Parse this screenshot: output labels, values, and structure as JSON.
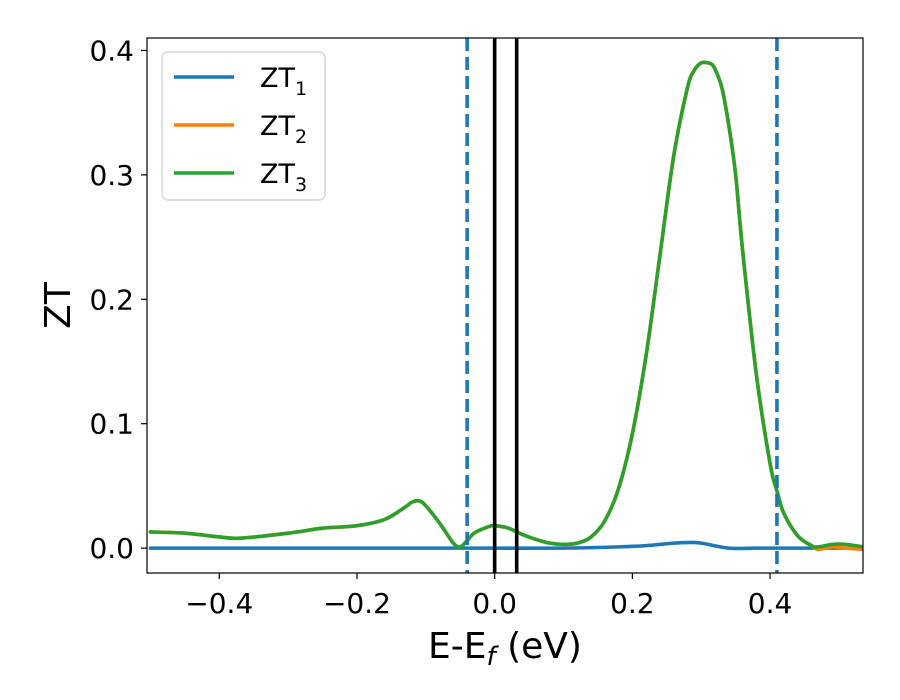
{
  "chart_data": {
    "type": "line",
    "xlabel": "E-E",
    "xlabel_sub": "f",
    "xlabel_unit": " (eV)",
    "ylabel": "ZT",
    "xlim": [
      -0.505,
      0.535
    ],
    "ylim": [
      -0.02,
      0.41
    ],
    "xticks": [
      -0.4,
      -0.2,
      0.0,
      0.2,
      0.4
    ],
    "xtick_labels": [
      "−0.4",
      "−0.2",
      "0.0",
      "0.2",
      "0.4"
    ],
    "yticks": [
      0.0,
      0.1,
      0.2,
      0.3,
      0.4
    ],
    "ytick_labels": [
      "0.0",
      "0.1",
      "0.2",
      "0.3",
      "0.4"
    ],
    "grid": false,
    "legend_position": "upper-left",
    "series": [
      {
        "name": "ZT",
        "sub": "1",
        "color": "#1f77b4",
        "x": [
          -0.5,
          -0.4,
          -0.3,
          -0.2,
          -0.1,
          0.0,
          0.1,
          0.18,
          0.22,
          0.26,
          0.28,
          0.3,
          0.34,
          0.38,
          0.42,
          0.46,
          0.5,
          0.535
        ],
        "y": [
          0.0,
          0.0,
          0.0,
          0.0,
          0.0,
          0.0,
          0.0,
          0.001,
          0.002,
          0.004,
          0.0045,
          0.004,
          0.0,
          0.0,
          0.0,
          0.0,
          0.0,
          0.0
        ]
      },
      {
        "name": "ZT",
        "sub": "2",
        "color": "#ff7f0e",
        "x": [
          -0.5,
          -0.45,
          -0.4,
          -0.37,
          -0.3,
          -0.25,
          -0.2,
          -0.16,
          -0.13,
          -0.12,
          -0.11,
          -0.1,
          -0.08,
          -0.06,
          -0.05,
          -0.04,
          -0.03,
          -0.01,
          0.0,
          0.02,
          0.04,
          0.06,
          0.08,
          0.1,
          0.12,
          0.14,
          0.16,
          0.18,
          0.2,
          0.22,
          0.24,
          0.26,
          0.28,
          0.29,
          0.3,
          0.31,
          0.315,
          0.32,
          0.33,
          0.34,
          0.35,
          0.36,
          0.38,
          0.4,
          0.41,
          0.42,
          0.44,
          0.46,
          0.47,
          0.49,
          0.51,
          0.535
        ],
        "y": [
          0.013,
          0.012,
          0.009,
          0.008,
          0.012,
          0.016,
          0.018,
          0.023,
          0.033,
          0.037,
          0.038,
          0.034,
          0.02,
          0.004,
          0.001,
          0.006,
          0.012,
          0.017,
          0.018,
          0.016,
          0.011,
          0.007,
          0.004,
          0.003,
          0.004,
          0.009,
          0.022,
          0.048,
          0.092,
          0.155,
          0.235,
          0.315,
          0.37,
          0.384,
          0.39,
          0.39,
          0.389,
          0.385,
          0.37,
          0.34,
          0.3,
          0.24,
          0.14,
          0.068,
          0.046,
          0.028,
          0.01,
          0.002,
          -0.001,
          0.001,
          0.0,
          -0.001
        ]
      },
      {
        "name": "ZT",
        "sub": "3",
        "color": "#2ca02c",
        "x": [
          -0.5,
          -0.45,
          -0.4,
          -0.37,
          -0.3,
          -0.25,
          -0.2,
          -0.16,
          -0.13,
          -0.12,
          -0.11,
          -0.1,
          -0.08,
          -0.06,
          -0.05,
          -0.04,
          -0.03,
          -0.01,
          0.0,
          0.02,
          0.04,
          0.06,
          0.08,
          0.1,
          0.12,
          0.14,
          0.16,
          0.18,
          0.2,
          0.22,
          0.24,
          0.26,
          0.28,
          0.29,
          0.3,
          0.31,
          0.315,
          0.32,
          0.33,
          0.34,
          0.35,
          0.36,
          0.38,
          0.4,
          0.41,
          0.42,
          0.44,
          0.46,
          0.47,
          0.49,
          0.51,
          0.535
        ],
        "y": [
          0.013,
          0.012,
          0.009,
          0.008,
          0.012,
          0.016,
          0.018,
          0.023,
          0.033,
          0.037,
          0.038,
          0.034,
          0.02,
          0.004,
          0.001,
          0.006,
          0.012,
          0.017,
          0.018,
          0.016,
          0.011,
          0.007,
          0.004,
          0.003,
          0.004,
          0.009,
          0.022,
          0.048,
          0.092,
          0.155,
          0.235,
          0.315,
          0.37,
          0.384,
          0.39,
          0.39,
          0.389,
          0.385,
          0.37,
          0.34,
          0.3,
          0.24,
          0.14,
          0.068,
          0.046,
          0.028,
          0.01,
          0.002,
          0.001,
          0.003,
          0.003,
          0.001
        ]
      }
    ],
    "vlines": [
      {
        "x": -0.04,
        "color": "#1f77b4",
        "style": "dashed"
      },
      {
        "x": 0.0,
        "color": "#000000",
        "style": "solid"
      },
      {
        "x": 0.032,
        "color": "#000000",
        "style": "solid"
      },
      {
        "x": 0.41,
        "color": "#1f77b4",
        "style": "dashed"
      }
    ]
  }
}
